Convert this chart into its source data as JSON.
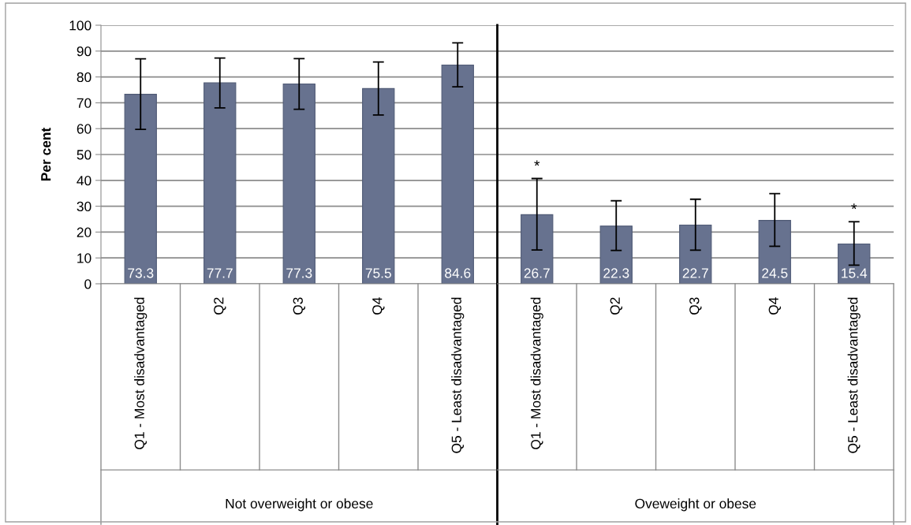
{
  "chart_data": [
    {
      "type": "bar",
      "ylabel": "Per cent",
      "xlabel": "Not overweight or obese",
      "categories": [
        "Q1 - Most disadvantaged",
        "Q2",
        "Q3",
        "Q4",
        "Q5 - Least disadvantaged"
      ],
      "values": [
        73.3,
        77.7,
        77.3,
        75.5,
        84.6
      ],
      "color": "#67728f",
      "errors": [
        [
          59.7,
          87.0
        ],
        [
          68.0,
          87.3
        ],
        [
          67.5,
          87.1
        ],
        [
          65.3,
          85.8
        ],
        [
          76.2,
          93.2
        ]
      ],
      "ylim": [
        0,
        100
      ],
      "yticks": [
        0,
        10,
        20,
        30,
        40,
        50,
        60,
        70,
        80,
        90,
        100
      ],
      "grid": "y",
      "data_labels": true
    },
    {
      "type": "bar",
      "xlabel": "Oveweight or obese",
      "categories": [
        "Q1 - Most disadvantaged",
        "Q2",
        "Q3",
        "Q4",
        "Q5 - Least disadvantaged"
      ],
      "values": [
        26.7,
        22.3,
        22.7,
        24.5,
        15.4
      ],
      "color": "#67728f",
      "errors": [
        [
          13.1,
          40.7
        ],
        [
          12.9,
          32.1
        ],
        [
          13.0,
          32.7
        ],
        [
          14.5,
          34.9
        ],
        [
          7.2,
          24.0
        ]
      ],
      "ylim": [
        0,
        100
      ],
      "yticks": [
        0,
        10,
        20,
        30,
        40,
        50,
        60,
        70,
        80,
        90,
        100
      ],
      "grid": "y",
      "data_labels": true,
      "tick_labels": "x",
      "annotations": [
        {
          "text": "*",
          "x": "Q1 - Most disadvantaged",
          "y": 40.7
        },
        {
          "text": "*",
          "x": "Q5 - Least disadvantaged",
          "y": 24.0
        }
      ]
    }
  ]
}
